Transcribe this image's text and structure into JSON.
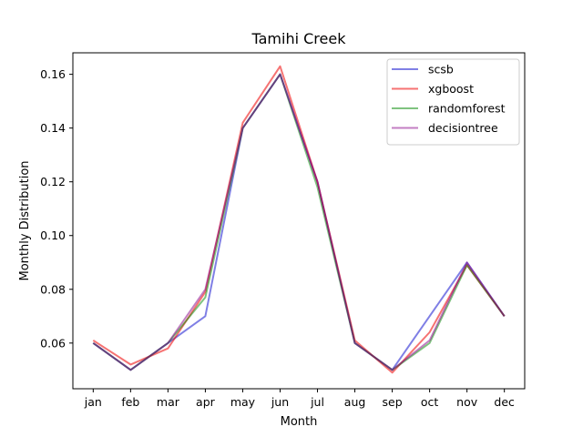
{
  "chart_data": {
    "type": "line",
    "title": "Tamihi Creek",
    "xlabel": "Month",
    "ylabel": "Monthly Distribution",
    "categories": [
      "jan",
      "feb",
      "mar",
      "apr",
      "may",
      "jun",
      "jul",
      "aug",
      "sep",
      "oct",
      "nov",
      "dec"
    ],
    "ylim": [
      0.043,
      0.168
    ],
    "yticks": [
      "0.06",
      "0.08",
      "0.10",
      "0.12",
      "0.14",
      "0.16"
    ],
    "grid": false,
    "legend_position": "top-right",
    "series": [
      {
        "name": "scsb",
        "color": "#0000cc",
        "opacity": 0.5,
        "values": [
          0.06,
          0.05,
          0.06,
          0.07,
          0.14,
          0.16,
          0.12,
          0.06,
          0.05,
          0.07,
          0.09,
          0.07
        ]
      },
      {
        "name": "xgboost",
        "color": "#ee0000",
        "opacity": 0.55,
        "values": [
          0.061,
          0.052,
          0.058,
          0.079,
          0.142,
          0.163,
          0.12,
          0.061,
          0.049,
          0.064,
          0.089,
          0.07
        ]
      },
      {
        "name": "randomforest",
        "color": "#008800",
        "opacity": 0.5,
        "values": [
          0.06,
          0.05,
          0.06,
          0.077,
          0.14,
          0.16,
          0.118,
          0.06,
          0.05,
          0.06,
          0.089,
          0.07
        ]
      },
      {
        "name": "decisiontree",
        "color": "#880088",
        "opacity": 0.5,
        "values": [
          0.06,
          0.05,
          0.06,
          0.08,
          0.14,
          0.16,
          0.12,
          0.06,
          0.05,
          0.061,
          0.09,
          0.07
        ]
      }
    ]
  }
}
